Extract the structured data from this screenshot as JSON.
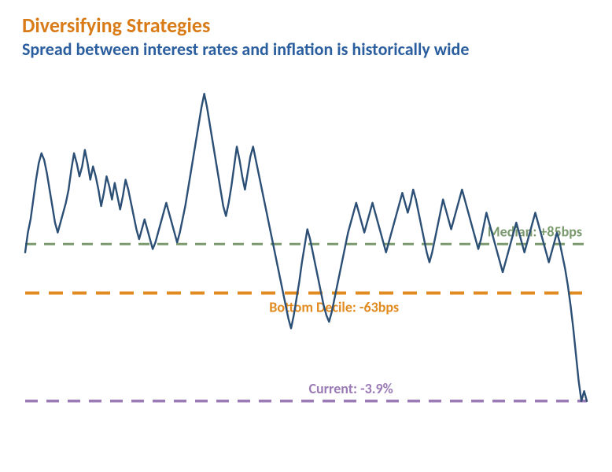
{
  "header": {
    "title": "Diversifying Strategies",
    "title_color": "#d97b17",
    "title_fontsize": 26,
    "subtitle": "Spread between interest rates and inflation is historically wide",
    "subtitle_color": "#2b5e9e",
    "subtitle_fontsize": 22
  },
  "chart": {
    "type": "line",
    "background_color": "transparent",
    "y_range": [
      -5,
      6
    ],
    "series": {
      "color": "#2c4f76",
      "line_width": 2.4,
      "values": [
        0.6,
        1.2,
        1.6,
        2.2,
        2.8,
        3.3,
        3.6,
        3.4,
        3.0,
        2.5,
        2.0,
        1.5,
        1.2,
        1.5,
        1.8,
        2.1,
        2.5,
        3.1,
        3.6,
        3.3,
        2.9,
        3.2,
        3.7,
        3.3,
        2.8,
        3.2,
        2.9,
        2.5,
        2.0,
        2.4,
        2.9,
        2.6,
        2.2,
        2.7,
        2.3,
        1.9,
        2.3,
        2.8,
        2.5,
        2.1,
        1.7,
        1.3,
        1.0,
        1.3,
        1.6,
        1.3,
        1.0,
        0.7,
        0.9,
        1.2,
        1.5,
        1.8,
        2.1,
        1.8,
        1.5,
        1.2,
        0.9,
        1.2,
        1.6,
        2.0,
        2.5,
        3.0,
        3.5,
        4.0,
        4.5,
        5.0,
        5.4,
        5.0,
        4.5,
        4.0,
        3.5,
        3.0,
        2.5,
        2.0,
        1.7,
        2.1,
        2.6,
        3.2,
        3.8,
        3.4,
        2.9,
        2.5,
        3.0,
        3.5,
        3.8,
        3.4,
        3.0,
        2.6,
        2.2,
        1.8,
        1.4,
        1.0,
        0.6,
        0.2,
        -0.2,
        -0.6,
        -1.0,
        -1.4,
        -1.7,
        -1.3,
        -0.8,
        -0.3,
        0.3,
        0.8,
        1.3,
        1.0,
        0.6,
        0.2,
        -0.2,
        -0.6,
        -1.0,
        -1.3,
        -1.5,
        -1.2,
        -0.8,
        -0.4,
        0.0,
        0.4,
        0.8,
        1.2,
        1.5,
        1.8,
        2.1,
        1.8,
        1.5,
        1.2,
        1.5,
        1.8,
        2.1,
        1.8,
        1.5,
        1.2,
        0.9,
        0.6,
        0.9,
        1.2,
        1.5,
        1.8,
        2.1,
        2.4,
        2.1,
        1.8,
        2.1,
        2.5,
        2.2,
        1.8,
        1.4,
        1.0,
        0.6,
        0.3,
        0.6,
        1.0,
        1.4,
        1.8,
        2.2,
        1.9,
        1.6,
        1.3,
        1.6,
        1.9,
        2.2,
        2.5,
        2.2,
        1.9,
        1.6,
        1.3,
        1.0,
        0.7,
        1.0,
        1.4,
        1.8,
        1.5,
        1.2,
        0.9,
        0.6,
        0.3,
        0.0,
        0.3,
        0.6,
        0.9,
        1.2,
        1.5,
        1.2,
        0.9,
        0.6,
        0.9,
        1.2,
        1.5,
        1.8,
        1.5,
        1.2,
        0.9,
        0.6,
        0.3,
        0.6,
        0.9,
        1.2,
        0.9,
        0.5,
        0.1,
        -0.4,
        -1.0,
        -1.7,
        -2.5,
        -3.3,
        -3.9,
        -3.6,
        -3.9
      ]
    },
    "reference_lines": [
      {
        "label": "Median: +85bps",
        "value": 0.85,
        "color": "#7a9a6e",
        "dash": "14 10",
        "line_width": 3,
        "label_position": "above-right"
      },
      {
        "label": "Bottom Decile: -63bps",
        "value": -0.63,
        "color": "#e08a1f",
        "dash": "18 12",
        "line_width": 4,
        "label_position": "below-center"
      },
      {
        "label": "Current: -3.9%",
        "value": -3.9,
        "color": "#9b7bb5",
        "dash": "16 11",
        "line_width": 3.5,
        "label_position": "above-center"
      }
    ]
  }
}
